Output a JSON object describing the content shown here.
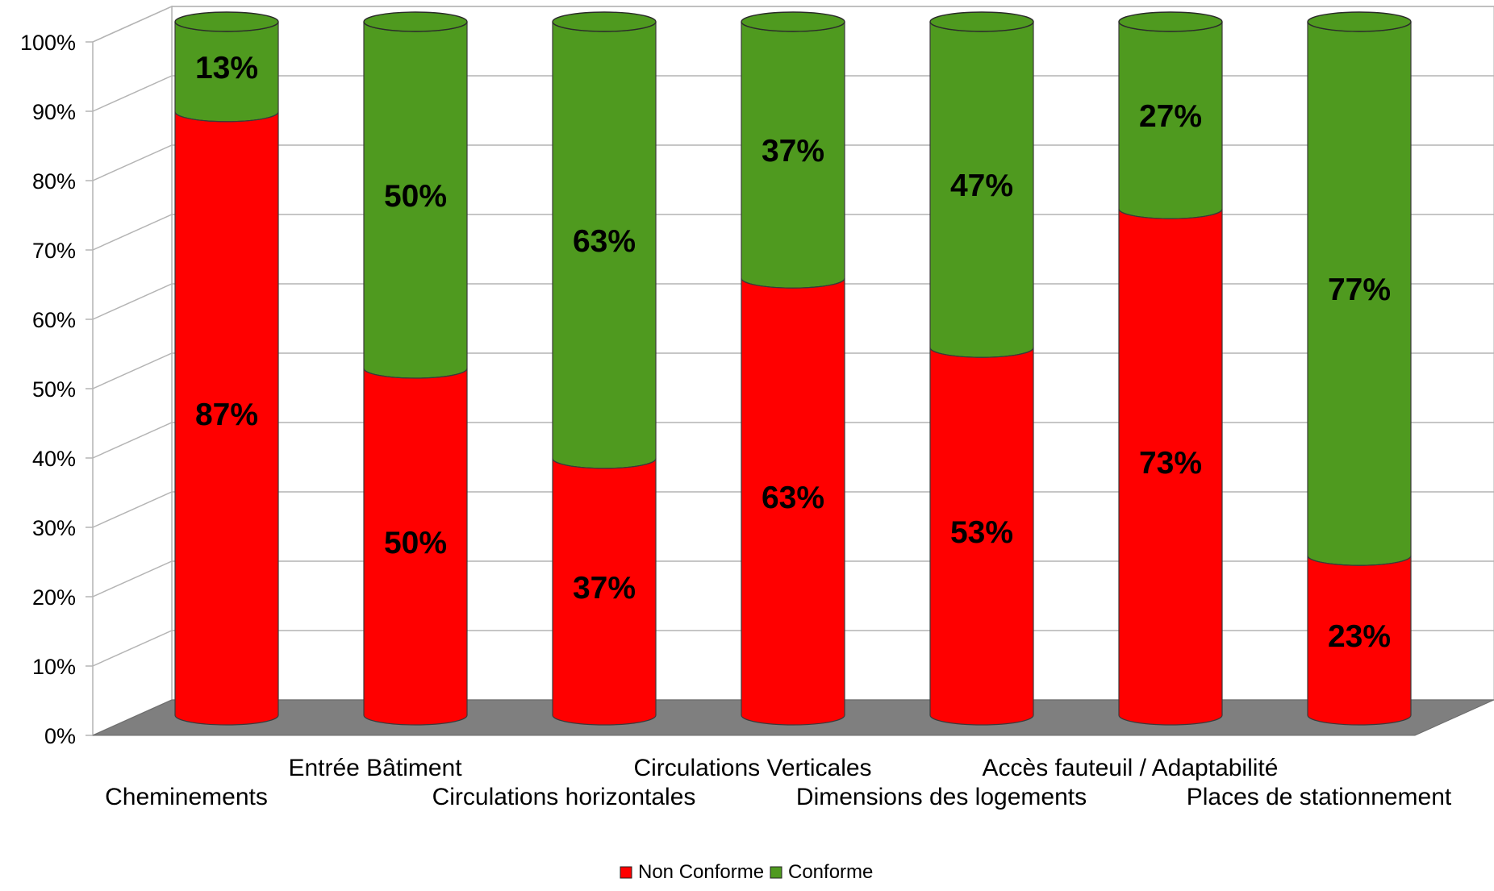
{
  "chart_data": {
    "type": "bar",
    "stacked": true,
    "percent_stacked": true,
    "three_d": true,
    "bar_shape": "cylinder",
    "categories": [
      "Cheminements",
      "Entrée Bâtiment",
      "Circulations horizontales",
      "Circulations Verticales",
      "Dimensions des logements",
      "Accès fauteuil / Adaptabilité",
      "Places de stationnement"
    ],
    "series": [
      {
        "name": "Non Conforme",
        "color": "#ff0000",
        "values": [
          87,
          50,
          37,
          63,
          53,
          73,
          23
        ],
        "labels": [
          "87%",
          "50%",
          "37%",
          "63%",
          "53%",
          "73%",
          "23%"
        ]
      },
      {
        "name": "Conforme",
        "color": "#4f9a1f",
        "values": [
          13,
          50,
          63,
          37,
          47,
          27,
          77
        ],
        "labels": [
          "13%",
          "50%",
          "63%",
          "37%",
          "47%",
          "27%",
          "77%"
        ]
      }
    ],
    "ylim": [
      0,
      100
    ],
    "y_ticks": [
      "0%",
      "10%",
      "20%",
      "30%",
      "40%",
      "50%",
      "60%",
      "70%",
      "80%",
      "90%",
      "100%"
    ],
    "grid": true,
    "legend": "bottom",
    "title": "",
    "xlabel": "",
    "ylabel": ""
  }
}
